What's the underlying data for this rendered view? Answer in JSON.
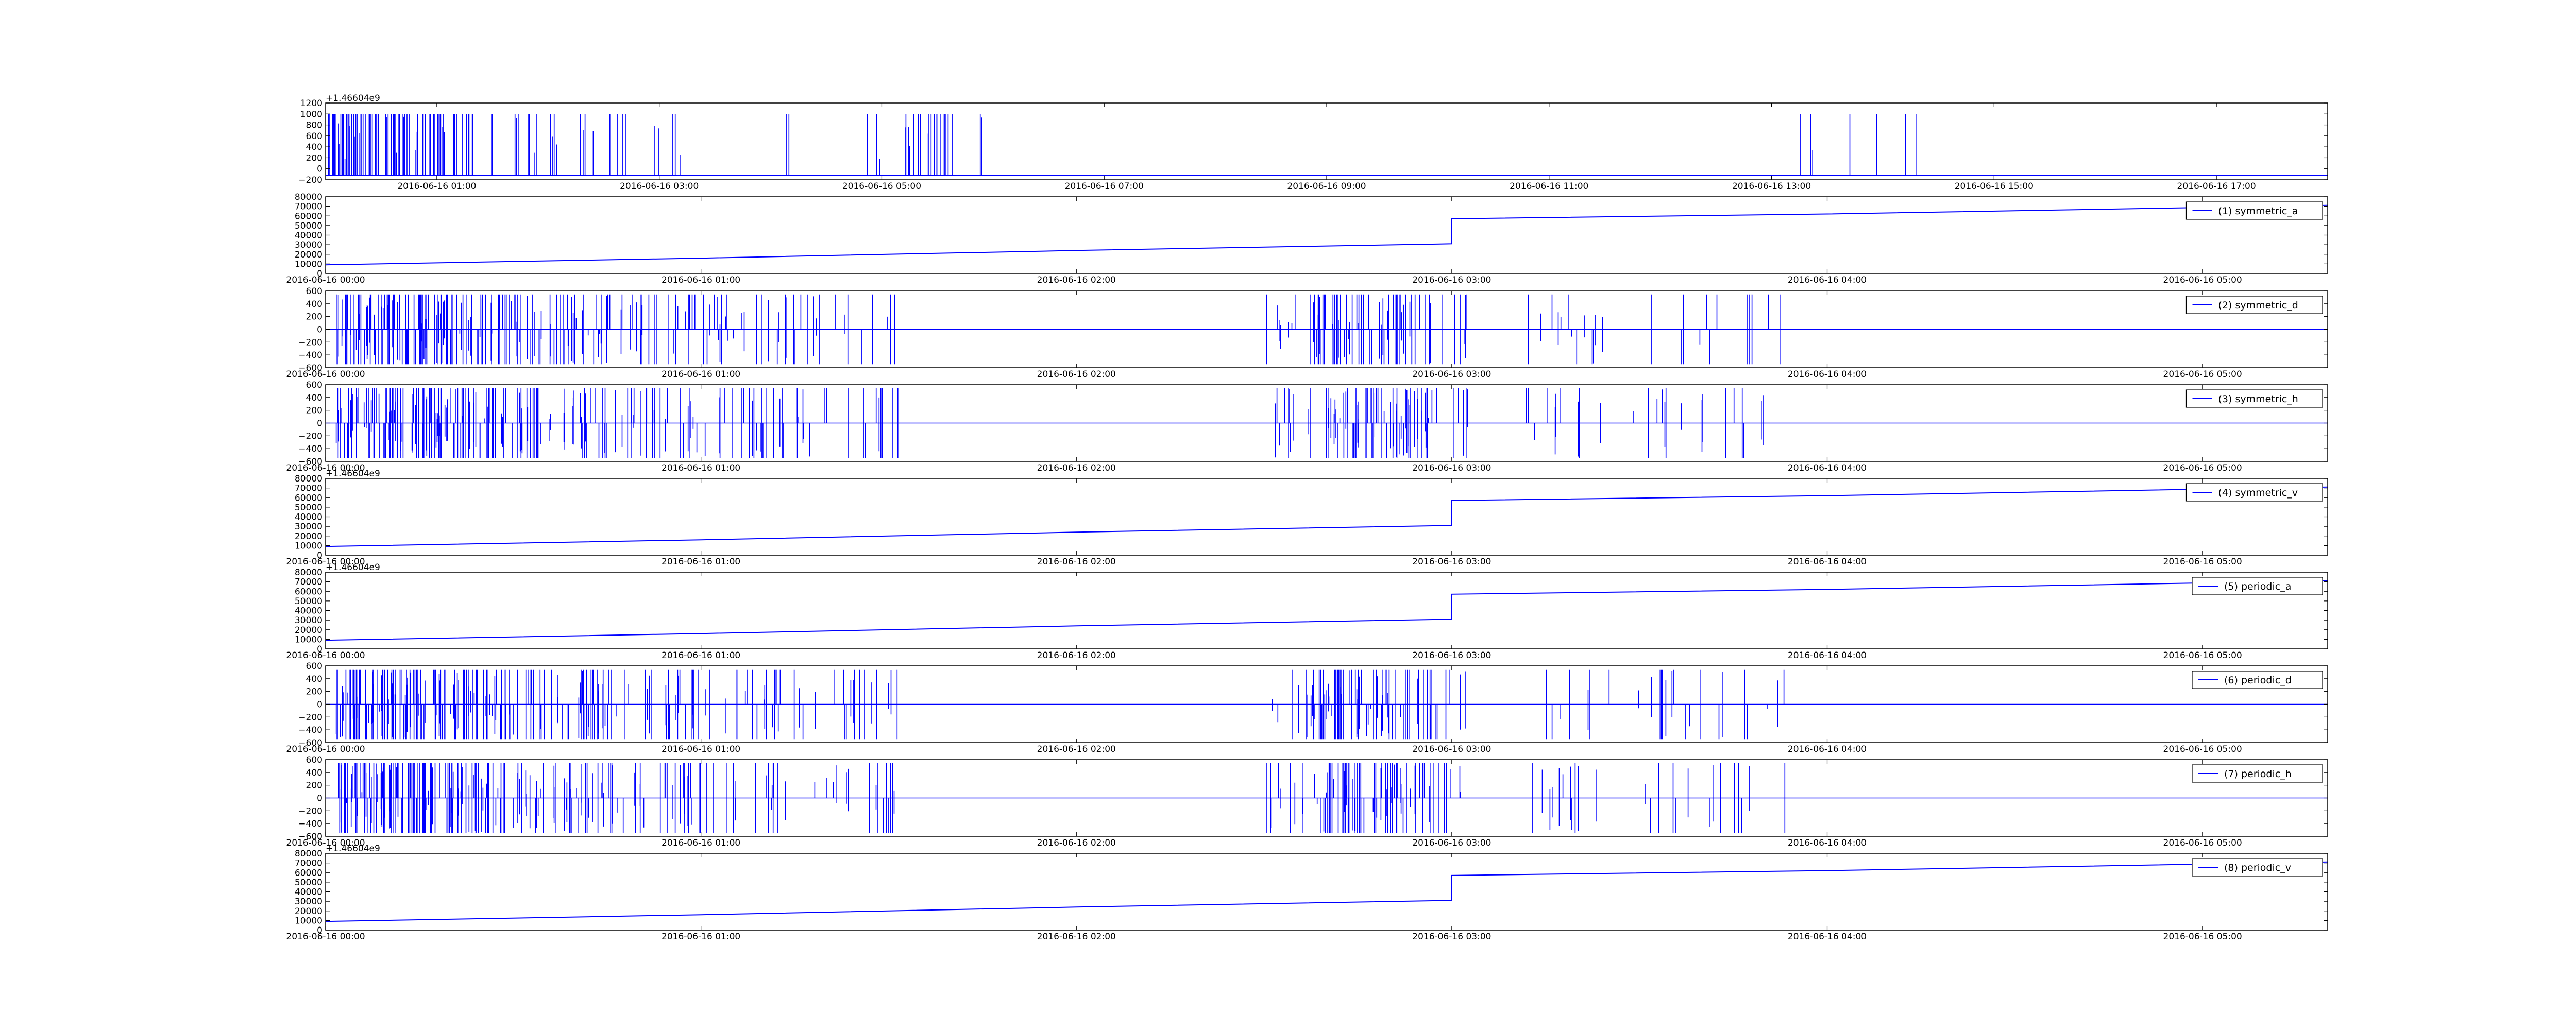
{
  "figure": {
    "background": "#ffffff",
    "line_color": "#0000ff",
    "axis_color": "#000000"
  },
  "chart_data": [
    {
      "type": "line",
      "panel": 0,
      "offset_text": "+1.46604e9",
      "ylim": [
        -200,
        1200
      ],
      "yticks": [
        "1200",
        "1000",
        "800",
        "600",
        "400",
        "200",
        "0",
        "−200"
      ],
      "xlim": [
        0,
        64800
      ],
      "xticks": [
        {
          "x": 3600,
          "label": "2016-06-16 01:00"
        },
        {
          "x": 10800,
          "label": "2016-06-16 03:00"
        },
        {
          "x": 18000,
          "label": "2016-06-16 05:00"
        },
        {
          "x": 25200,
          "label": "2016-06-16 07:00"
        },
        {
          "x": 32400,
          "label": "2016-06-16 09:00"
        },
        {
          "x": 39600,
          "label": "2016-06-16 11:00"
        },
        {
          "x": 46800,
          "label": "2016-06-16 13:00"
        },
        {
          "x": 54000,
          "label": "2016-06-16 15:00"
        },
        {
          "x": 61200,
          "label": "2016-06-16 17:00"
        }
      ],
      "pattern": "spikes",
      "baseline": -120,
      "spike_clusters": [
        [
          80,
          1700,
          0.95
        ],
        [
          1700,
          2700,
          0.85
        ],
        [
          2700,
          4800,
          0.6
        ],
        [
          5300,
          7500,
          0.25
        ],
        [
          8200,
          9800,
          0.2
        ],
        [
          10400,
          11600,
          0.15
        ],
        [
          14800,
          15600,
          0.1
        ],
        [
          17500,
          18200,
          0.2
        ],
        [
          18700,
          20400,
          0.5
        ],
        [
          20800,
          21400,
          0.15
        ],
        [
          47600,
          51500,
          0.07
        ]
      ],
      "legend": ""
    },
    {
      "type": "line",
      "panel": 1,
      "ylim": [
        0,
        80000
      ],
      "yticks": [
        "80000",
        "70000",
        "60000",
        "50000",
        "40000",
        "30000",
        "20000",
        "10000",
        "0"
      ],
      "xlim": [
        0,
        19200
      ],
      "xticks": [
        {
          "x": 0,
          "label": "2016-06-16 00:00"
        },
        {
          "x": 3600,
          "label": "2016-06-16 01:00"
        },
        {
          "x": 7200,
          "label": "2016-06-16 02:00"
        },
        {
          "x": 10800,
          "label": "2016-06-16 03:00"
        },
        {
          "x": 14400,
          "label": "2016-06-16 04:00"
        },
        {
          "x": 18000,
          "label": "2016-06-16 05:00"
        }
      ],
      "pattern": "ramp",
      "points": [
        [
          0,
          9000
        ],
        [
          3600,
          16000
        ],
        [
          7200,
          24000
        ],
        [
          10800,
          31000
        ],
        [
          10800,
          57000
        ],
        [
          14400,
          62000
        ],
        [
          19200,
          71000
        ]
      ],
      "legend": "(1) symmetric_a"
    },
    {
      "type": "line",
      "panel": 2,
      "ylim": [
        -600,
        600
      ],
      "yticks": [
        "600",
        "400",
        "200",
        "0",
        "−200",
        "−400",
        "−600"
      ],
      "xlim": [
        0,
        19200
      ],
      "xticks": [
        {
          "x": 0,
          "label": "2016-06-16 00:00"
        },
        {
          "x": 3600,
          "label": "2016-06-16 01:00"
        },
        {
          "x": 7200,
          "label": "2016-06-16 02:00"
        },
        {
          "x": 10800,
          "label": "2016-06-16 03:00"
        },
        {
          "x": 14400,
          "label": "2016-06-16 04:00"
        },
        {
          "x": 18000,
          "label": "2016-06-16 05:00"
        }
      ],
      "pattern": "bipolar",
      "spike_clusters": [
        [
          100,
          1150,
          0.95
        ],
        [
          1150,
          1800,
          0.7
        ],
        [
          1800,
          2700,
          0.5
        ],
        [
          2700,
          3400,
          0.3
        ],
        [
          3400,
          4400,
          0.3
        ],
        [
          4400,
          5500,
          0.2
        ],
        [
          9000,
          9500,
          0.25
        ],
        [
          9500,
          10600,
          0.7
        ],
        [
          10600,
          11000,
          0.2
        ],
        [
          11500,
          13500,
          0.12
        ],
        [
          13500,
          14000,
          0.12
        ]
      ],
      "legend": "(2) symmetric_d"
    },
    {
      "type": "line",
      "panel": 3,
      "ylim": [
        -600,
        600
      ],
      "yticks": [
        "600",
        "400",
        "200",
        "0",
        "−200",
        "−400",
        "−600"
      ],
      "xlim": [
        0,
        19200
      ],
      "xticks": [
        {
          "x": 0,
          "label": "2016-06-16 00:00"
        },
        {
          "x": 3600,
          "label": "2016-06-16 01:00"
        },
        {
          "x": 7200,
          "label": "2016-06-16 02:00"
        },
        {
          "x": 10800,
          "label": "2016-06-16 03:00"
        },
        {
          "x": 14400,
          "label": "2016-06-16 04:00"
        },
        {
          "x": 18000,
          "label": "2016-06-16 05:00"
        }
      ],
      "pattern": "bipolar",
      "spike_clusters": [
        [
          100,
          1150,
          0.95
        ],
        [
          1150,
          1800,
          0.7
        ],
        [
          1800,
          2700,
          0.5
        ],
        [
          2700,
          3400,
          0.3
        ],
        [
          3400,
          4400,
          0.3
        ],
        [
          4400,
          5500,
          0.2
        ],
        [
          9000,
          9500,
          0.25
        ],
        [
          9500,
          10600,
          0.7
        ],
        [
          10600,
          11000,
          0.2
        ],
        [
          11500,
          13500,
          0.12
        ],
        [
          13500,
          14000,
          0.12
        ]
      ],
      "legend": "(3) symmetric_h"
    },
    {
      "type": "line",
      "panel": 4,
      "offset_text": "+1.46604e9",
      "ylim": [
        0,
        80000
      ],
      "yticks": [
        "80000",
        "70000",
        "60000",
        "50000",
        "40000",
        "30000",
        "20000",
        "10000",
        "0"
      ],
      "xlim": [
        0,
        19200
      ],
      "xticks": [
        {
          "x": 0,
          "label": "2016-06-16 00:00"
        },
        {
          "x": 3600,
          "label": "2016-06-16 01:00"
        },
        {
          "x": 7200,
          "label": "2016-06-16 02:00"
        },
        {
          "x": 10800,
          "label": "2016-06-16 03:00"
        },
        {
          "x": 14400,
          "label": "2016-06-16 04:00"
        },
        {
          "x": 18000,
          "label": "2016-06-16 05:00"
        }
      ],
      "pattern": "ramp",
      "points": [
        [
          0,
          9000
        ],
        [
          3600,
          16000
        ],
        [
          7200,
          24000
        ],
        [
          10800,
          31000
        ],
        [
          10800,
          57000
        ],
        [
          14400,
          62000
        ],
        [
          19200,
          71000
        ]
      ],
      "legend": "(4) symmetric_v"
    },
    {
      "type": "line",
      "panel": 5,
      "offset_text": "+1.46604e9",
      "ylim": [
        0,
        80000
      ],
      "yticks": [
        "80000",
        "70000",
        "60000",
        "50000",
        "40000",
        "30000",
        "20000",
        "10000",
        "0"
      ],
      "xlim": [
        0,
        19200
      ],
      "xticks": [
        {
          "x": 0,
          "label": "2016-06-16 00:00"
        },
        {
          "x": 3600,
          "label": "2016-06-16 01:00"
        },
        {
          "x": 7200,
          "label": "2016-06-16 02:00"
        },
        {
          "x": 10800,
          "label": "2016-06-16 03:00"
        },
        {
          "x": 14400,
          "label": "2016-06-16 04:00"
        },
        {
          "x": 18000,
          "label": "2016-06-16 05:00"
        }
      ],
      "pattern": "ramp",
      "points": [
        [
          0,
          9000
        ],
        [
          3600,
          16000
        ],
        [
          7200,
          24000
        ],
        [
          10800,
          31000
        ],
        [
          10800,
          57000
        ],
        [
          14400,
          62000
        ],
        [
          19200,
          71000
        ]
      ],
      "legend": "(5) periodic_a"
    },
    {
      "type": "line",
      "panel": 6,
      "ylim": [
        -600,
        600
      ],
      "yticks": [
        "600",
        "400",
        "200",
        "0",
        "−200",
        "−400",
        "−600"
      ],
      "xlim": [
        0,
        19200
      ],
      "xticks": [
        {
          "x": 0,
          "label": "2016-06-16 00:00"
        },
        {
          "x": 3600,
          "label": "2016-06-16 01:00"
        },
        {
          "x": 7200,
          "label": "2016-06-16 02:00"
        },
        {
          "x": 10800,
          "label": "2016-06-16 03:00"
        },
        {
          "x": 14400,
          "label": "2016-06-16 04:00"
        },
        {
          "x": 18000,
          "label": "2016-06-16 05:00"
        }
      ],
      "pattern": "bipolar",
      "spike_clusters": [
        [
          100,
          1150,
          0.95
        ],
        [
          1150,
          1800,
          0.7
        ],
        [
          1800,
          2700,
          0.5
        ],
        [
          2700,
          3400,
          0.3
        ],
        [
          3400,
          4400,
          0.3
        ],
        [
          4400,
          5500,
          0.2
        ],
        [
          9000,
          9500,
          0.25
        ],
        [
          9500,
          10600,
          0.7
        ],
        [
          10600,
          11000,
          0.2
        ],
        [
          11500,
          13500,
          0.12
        ],
        [
          13500,
          14000,
          0.12
        ]
      ],
      "legend": "(6) periodic_d"
    },
    {
      "type": "line",
      "panel": 7,
      "ylim": [
        -600,
        600
      ],
      "yticks": [
        "600",
        "400",
        "200",
        "0",
        "−200",
        "−400",
        "−600"
      ],
      "xlim": [
        0,
        19200
      ],
      "xticks": [
        {
          "x": 0,
          "label": "2016-06-16 00:00"
        },
        {
          "x": 3600,
          "label": "2016-06-16 01:00"
        },
        {
          "x": 7200,
          "label": "2016-06-16 02:00"
        },
        {
          "x": 10800,
          "label": "2016-06-16 03:00"
        },
        {
          "x": 14400,
          "label": "2016-06-16 04:00"
        },
        {
          "x": 18000,
          "label": "2016-06-16 05:00"
        }
      ],
      "pattern": "bipolar",
      "spike_clusters": [
        [
          100,
          1150,
          0.95
        ],
        [
          1150,
          1800,
          0.7
        ],
        [
          1800,
          2700,
          0.5
        ],
        [
          2700,
          3400,
          0.3
        ],
        [
          3400,
          4400,
          0.3
        ],
        [
          4400,
          5500,
          0.2
        ],
        [
          9000,
          9500,
          0.25
        ],
        [
          9500,
          10600,
          0.7
        ],
        [
          10600,
          11000,
          0.2
        ],
        [
          11500,
          13500,
          0.12
        ],
        [
          13500,
          14000,
          0.12
        ]
      ],
      "legend": "(7) periodic_h"
    },
    {
      "type": "line",
      "panel": 8,
      "offset_text": "+1.46604e9",
      "ylim": [
        0,
        80000
      ],
      "yticks": [
        "80000",
        "70000",
        "60000",
        "50000",
        "40000",
        "30000",
        "20000",
        "10000",
        "0"
      ],
      "xlim": [
        0,
        19200
      ],
      "xticks": [
        {
          "x": 0,
          "label": "2016-06-16 00:00"
        },
        {
          "x": 3600,
          "label": "2016-06-16 01:00"
        },
        {
          "x": 7200,
          "label": "2016-06-16 02:00"
        },
        {
          "x": 10800,
          "label": "2016-06-16 03:00"
        },
        {
          "x": 14400,
          "label": "2016-06-16 04:00"
        },
        {
          "x": 18000,
          "label": "2016-06-16 05:00"
        }
      ],
      "pattern": "ramp",
      "points": [
        [
          0,
          9000
        ],
        [
          3600,
          16000
        ],
        [
          7200,
          24000
        ],
        [
          10800,
          31000
        ],
        [
          10800,
          57000
        ],
        [
          14400,
          62000
        ],
        [
          19200,
          71000
        ]
      ],
      "legend": "(8) periodic_v"
    }
  ]
}
